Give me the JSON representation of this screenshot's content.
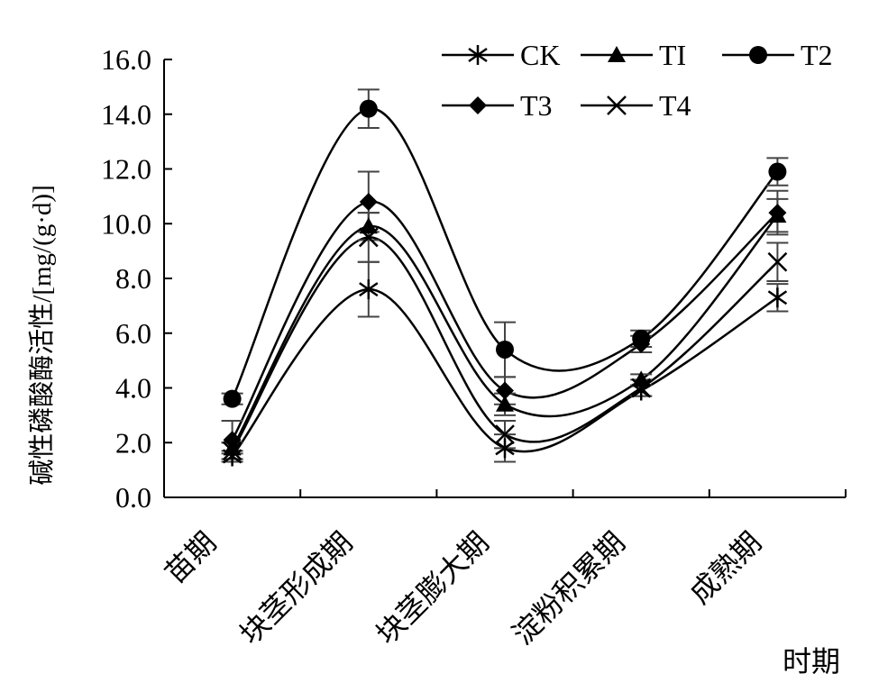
{
  "chart_data": {
    "type": "line",
    "title": "",
    "xlabel": "时期",
    "ylabel": "碱性磷酸酶活性/[mg/(g·d)]",
    "categories": [
      "苗期",
      "块茎形成期",
      "块茎膨大期",
      "淀粉积累期",
      "成熟期"
    ],
    "ylim": [
      0,
      16
    ],
    "yticks": [
      "0.0",
      "2.0",
      "4.0",
      "6.0",
      "8.0",
      "10.0",
      "12.0",
      "14.0",
      "16.0"
    ],
    "grid": false,
    "legend_position": "top-right",
    "series": [
      {
        "name": "CK",
        "marker": "asterisk",
        "values": [
          1.5,
          7.6,
          1.8,
          3.9,
          7.3
        ],
        "errors": [
          0.2,
          1.0,
          0.5,
          0.2,
          0.5
        ]
      },
      {
        "name": "TI",
        "marker": "triangle",
        "values": [
          1.8,
          9.9,
          3.4,
          4.3,
          10.3
        ],
        "errors": [
          0.2,
          0.5,
          0.4,
          0.2,
          0.6
        ]
      },
      {
        "name": "T2",
        "marker": "circle",
        "values": [
          3.6,
          14.2,
          5.4,
          5.8,
          11.9
        ],
        "errors": [
          0.2,
          0.7,
          1.0,
          0.3,
          0.5
        ]
      },
      {
        "name": "T3",
        "marker": "diamond",
        "values": [
          2.1,
          10.8,
          3.9,
          5.6,
          10.4
        ],
        "errors": [
          0.7,
          1.1,
          0.5,
          0.3,
          0.8
        ]
      },
      {
        "name": "T4",
        "marker": "x",
        "values": [
          1.7,
          9.5,
          2.3,
          4.0,
          8.6
        ],
        "errors": [
          0.3,
          0.9,
          0.5,
          0.3,
          0.7
        ]
      }
    ]
  }
}
